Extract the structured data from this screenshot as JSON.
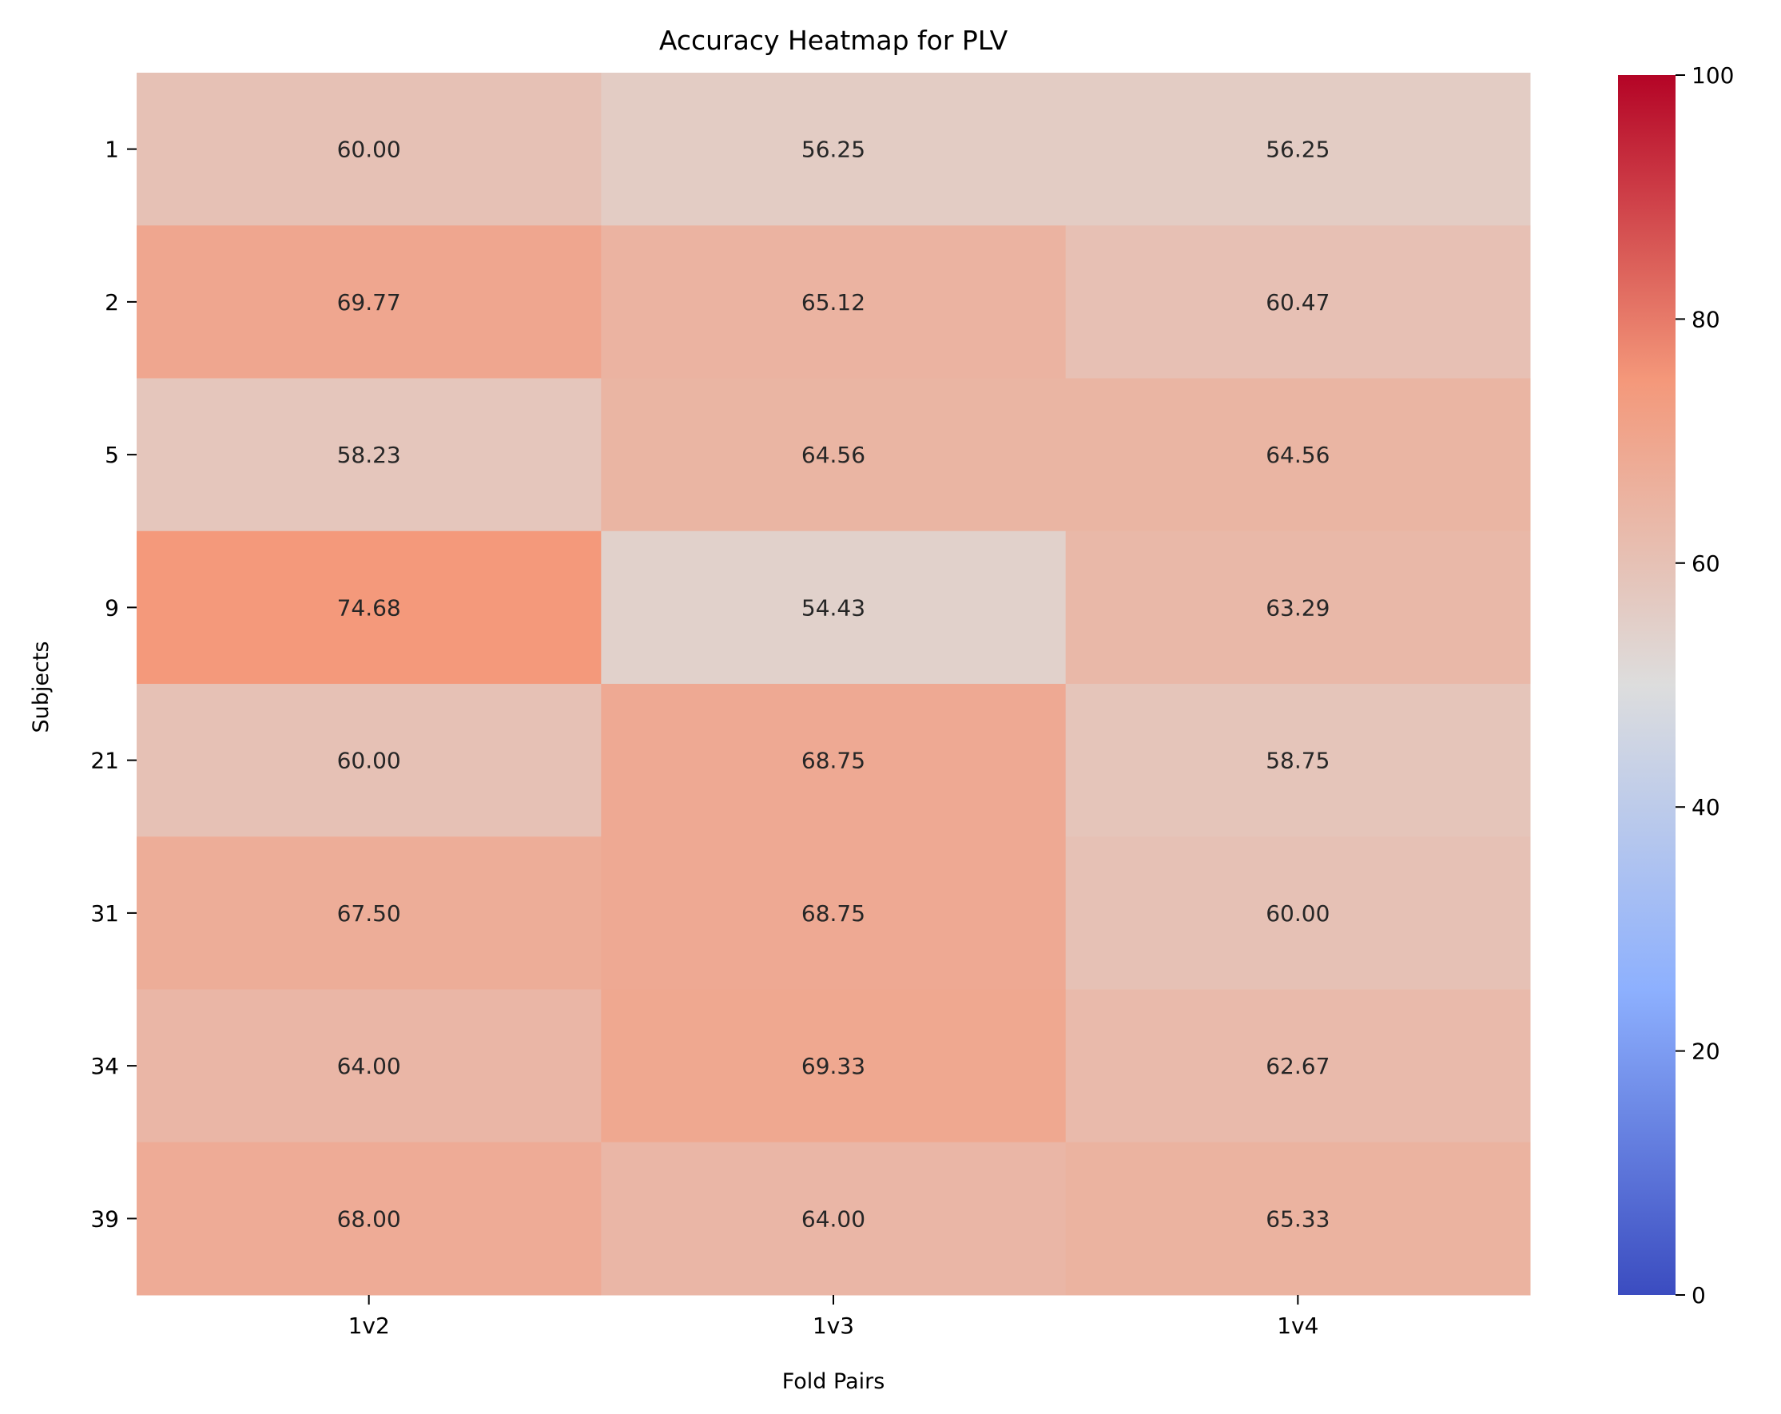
{
  "chart_data": {
    "type": "heatmap",
    "title": "Accuracy Heatmap for PLV",
    "xlabel": "Fold Pairs",
    "ylabel": "Subjects",
    "x_categories": [
      "1v2",
      "1v3",
      "1v4"
    ],
    "y_categories": [
      "1",
      "2",
      "5",
      "9",
      "21",
      "31",
      "34",
      "39"
    ],
    "values": [
      [
        60.0,
        56.25,
        56.25
      ],
      [
        69.77,
        65.12,
        60.47
      ],
      [
        58.23,
        64.56,
        64.56
      ],
      [
        74.68,
        54.43,
        63.29
      ],
      [
        60.0,
        68.75,
        58.75
      ],
      [
        67.5,
        68.75,
        60.0
      ],
      [
        64.0,
        69.33,
        62.67
      ],
      [
        68.0,
        64.0,
        65.33
      ]
    ],
    "value_format": "0.00",
    "colormap": "coolwarm",
    "colorbar": {
      "range": [
        0,
        100
      ],
      "ticks": [
        0,
        20,
        40,
        60,
        80,
        100
      ]
    }
  }
}
